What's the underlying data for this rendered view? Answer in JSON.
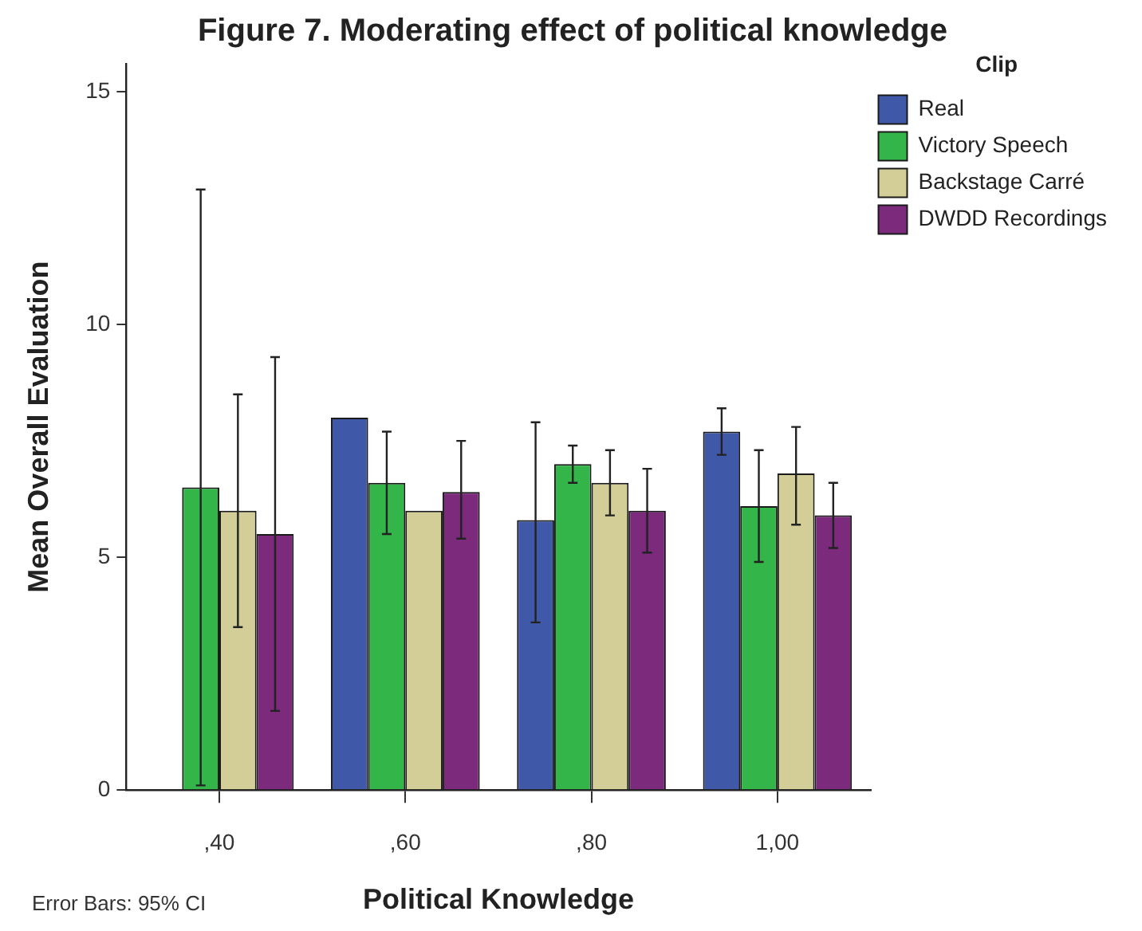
{
  "chart_data": {
    "type": "bar",
    "title": "Figure 7. Moderating effect of political knowledge",
    "xlabel": "Political Knowledge",
    "ylabel": "Mean Overall Evaluation",
    "legend_title": "Clip",
    "annotations": [
      "Error Bars: 95% CI"
    ],
    "categories": [
      ",40",
      ",60",
      ",80",
      "1,00"
    ],
    "ylim": [
      0,
      15.6
    ],
    "yticks": [
      0,
      5,
      10,
      15
    ],
    "grid": false,
    "legend": "top right",
    "series": [
      {
        "name": "Real",
        "color": "#3f58a8",
        "values": [
          null,
          8.0,
          5.8,
          7.7
        ],
        "errors": [
          null,
          null,
          [
            3.6,
            7.9
          ],
          [
            7.2,
            8.2
          ]
        ]
      },
      {
        "name": "Victory Speech",
        "color": "#33b54a",
        "values": [
          6.5,
          6.6,
          7.0,
          6.1
        ],
        "errors": [
          [
            0.1,
            12.9
          ],
          [
            5.5,
            7.7
          ],
          [
            6.6,
            7.4
          ],
          [
            4.9,
            7.3
          ]
        ]
      },
      {
        "name": "Backstage Carré",
        "color": "#d3ce97",
        "values": [
          6.0,
          6.0,
          6.6,
          6.8
        ],
        "errors": [
          [
            3.5,
            8.5
          ],
          null,
          [
            5.9,
            7.3
          ],
          [
            5.7,
            7.8
          ]
        ]
      },
      {
        "name": "DWDD Recordings",
        "color": "#7b2a7c",
        "values": [
          5.5,
          6.4,
          6.0,
          5.9
        ],
        "errors": [
          [
            1.7,
            9.3
          ],
          [
            5.4,
            7.5
          ],
          [
            5.1,
            6.9
          ],
          [
            5.2,
            6.6
          ]
        ]
      }
    ]
  }
}
